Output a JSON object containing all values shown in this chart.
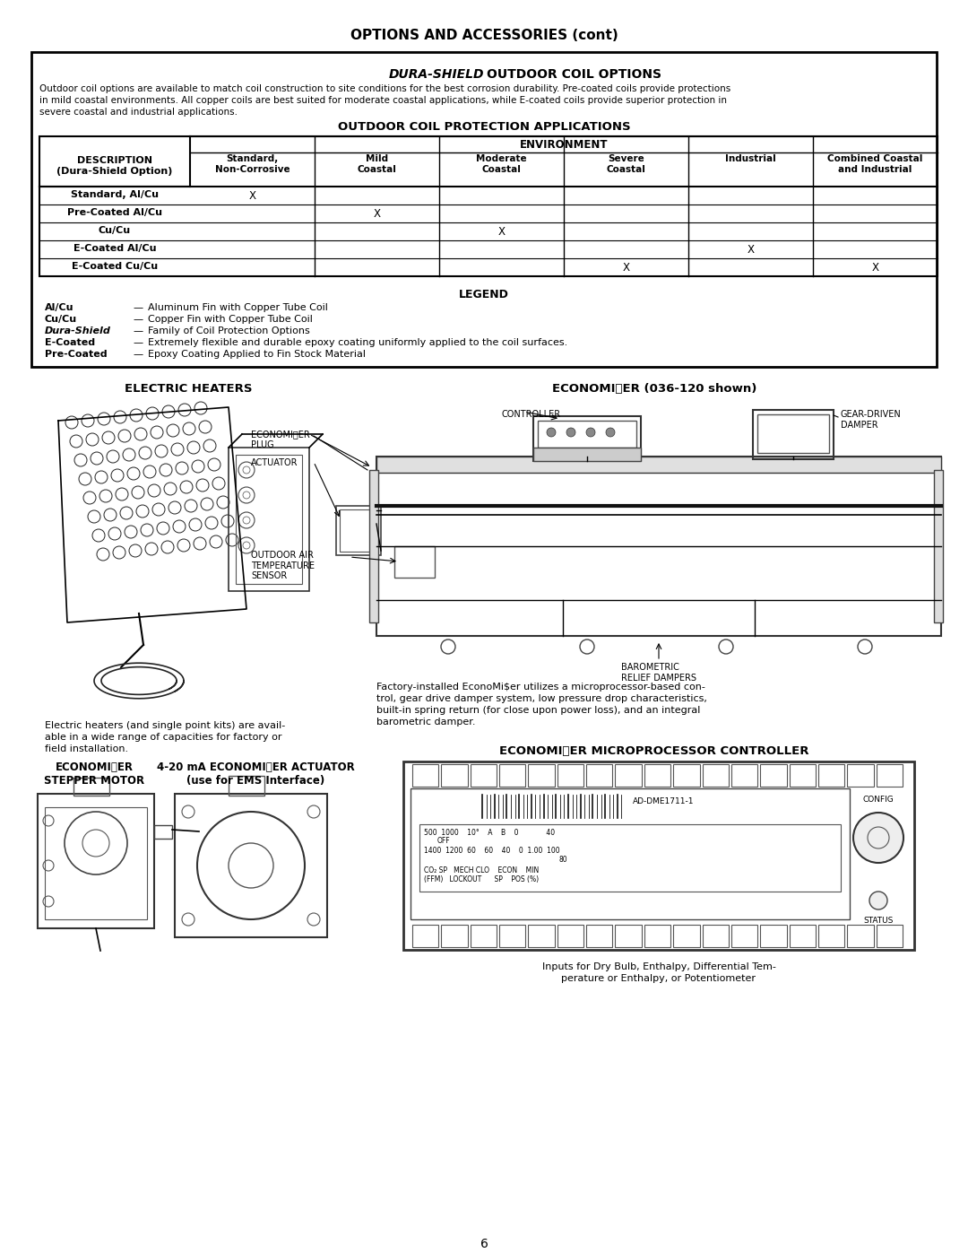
{
  "page_title": "OPTIONS AND ACCESSORIES (cont)",
  "page_number": "6",
  "table_title": "OUTDOOR COIL PROTECTION APPLICATIONS",
  "table_cols": [
    "Standard,\nNon-Corrosive",
    "Mild\nCoastal",
    "Moderate\nCoastal",
    "Severe\nCoastal",
    "Industrial",
    "Combined Coastal\nand Industrial"
  ],
  "table_rows": [
    [
      "Standard, Al/Cu",
      "X",
      "",
      "",
      "",
      "",
      ""
    ],
    [
      "Pre-Coated Al/Cu",
      "",
      "X",
      "",
      "",
      "",
      ""
    ],
    [
      "Cu/Cu",
      "",
      "",
      "X",
      "",
      "",
      ""
    ],
    [
      "E-Coated Al/Cu",
      "",
      "",
      "",
      "",
      "X",
      ""
    ],
    [
      "E-Coated Cu/Cu",
      "",
      "",
      "",
      "X",
      "",
      "X"
    ]
  ],
  "legend_items": [
    [
      "Al/Cu",
      "Aluminum Fin with Copper Tube Coil"
    ],
    [
      "Cu/Cu",
      "Copper Fin with Copper Tube Coil"
    ],
    [
      "Dura-Shield",
      "Family of Coil Protection Options"
    ],
    [
      "E-Coated",
      "Extremely flexible and durable epoxy coating uniformly applied to the coil surfaces."
    ],
    [
      "Pre-Coated",
      "Epoxy Coating Applied to Fin Stock Material"
    ]
  ],
  "section1_body_lines": [
    "Outdoor coil options are available to match coil construction to site conditions for the best corrosion durability. Pre-coated coils provide protections",
    "in mild coastal environments. All copper coils are best suited for moderate coastal applications, while E-coated coils provide superior protection in",
    "severe coastal and industrial applications."
  ],
  "electric_heaters_caption_lines": [
    "Electric heaters (and single point kits) are avail-",
    "able in a wide range of capacities for factory or",
    "field installation."
  ],
  "economiser_caption_lines": [
    "Factory-installed EconoMi$er utilizes a microprocessor-based con-",
    "trol, gear drive damper system, low pressure drop characteristics,",
    "built-in spring return (for close upon power loss), and an integral",
    "barometric damper."
  ],
  "micro_caption_lines": [
    "Inputs for Dry Bulb, Enthalpy, Differential Tem-",
    "perature or Enthalpy, or Potentiometer"
  ],
  "bg_color": "#ffffff"
}
